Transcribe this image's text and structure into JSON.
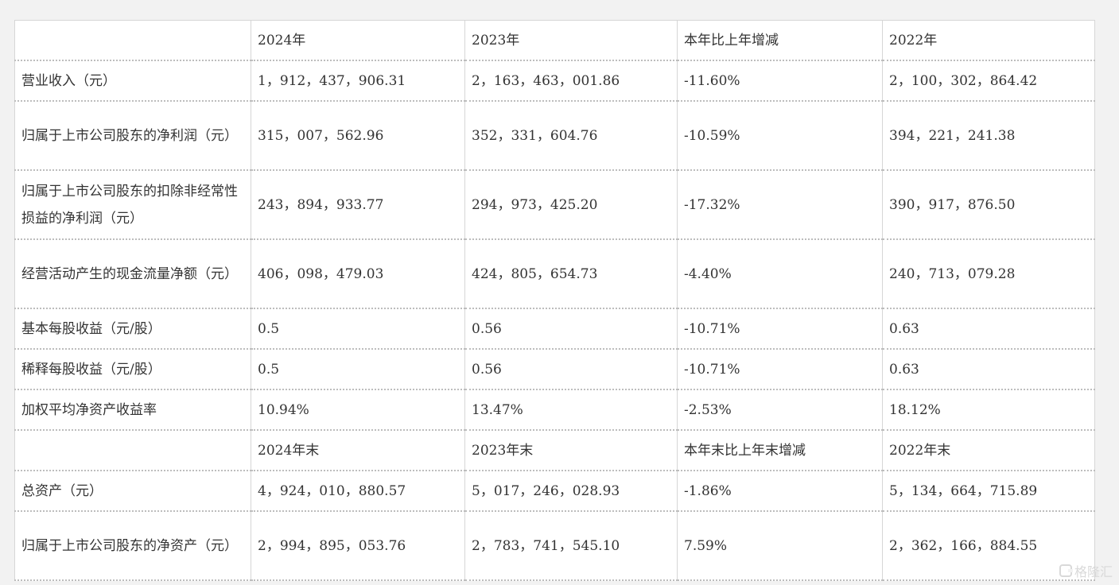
{
  "table": {
    "header": [
      "",
      "2024年",
      "2023年",
      "本年比上年增减",
      "2022年"
    ],
    "rows": [
      [
        "营业收入（元）",
        "1，912，437，906.31",
        "2，163，463，001.86",
        "-11.60%",
        "2，100，302，864.42"
      ],
      [
        "归属于上市公司股东的净利润（元）",
        "315，007，562.96",
        "352，331，604.76",
        "-10.59%",
        "394，221，241.38"
      ],
      [
        "归属于上市公司股东的扣除非经常性损益的净利润（元）",
        "243，894，933.77",
        "294，973，425.20",
        "-17.32%",
        "390，917，876.50"
      ],
      [
        "经营活动产生的现金流量净额（元）",
        "406，098，479.03",
        "424，805，654.73",
        "-4.40%",
        "240，713，079.28"
      ],
      [
        "基本每股收益（元/股）",
        "0.5",
        "0.56",
        "-10.71%",
        "0.63"
      ],
      [
        "稀释每股收益（元/股）",
        "0.5",
        "0.56",
        "-10.71%",
        "0.63"
      ],
      [
        "加权平均净资产收益率",
        "10.94%",
        "13.47%",
        "-2.53%",
        "18.12%"
      ]
    ],
    "header2": [
      "",
      "2024年末",
      "2023年末",
      "本年末比上年末增减",
      "2022年末"
    ],
    "rows2": [
      [
        "总资产（元）",
        "4，924，010，880.57",
        "5，017，246，028.93",
        "-1.86%",
        "5，134，664，715.89"
      ],
      [
        "归属于上市公司股东的净资产（元）",
        "2，994，895，053.76",
        "2，783，741，545.10",
        "7.59%",
        "2，362，166，884.55"
      ]
    ]
  },
  "watermark": "格隆汇"
}
